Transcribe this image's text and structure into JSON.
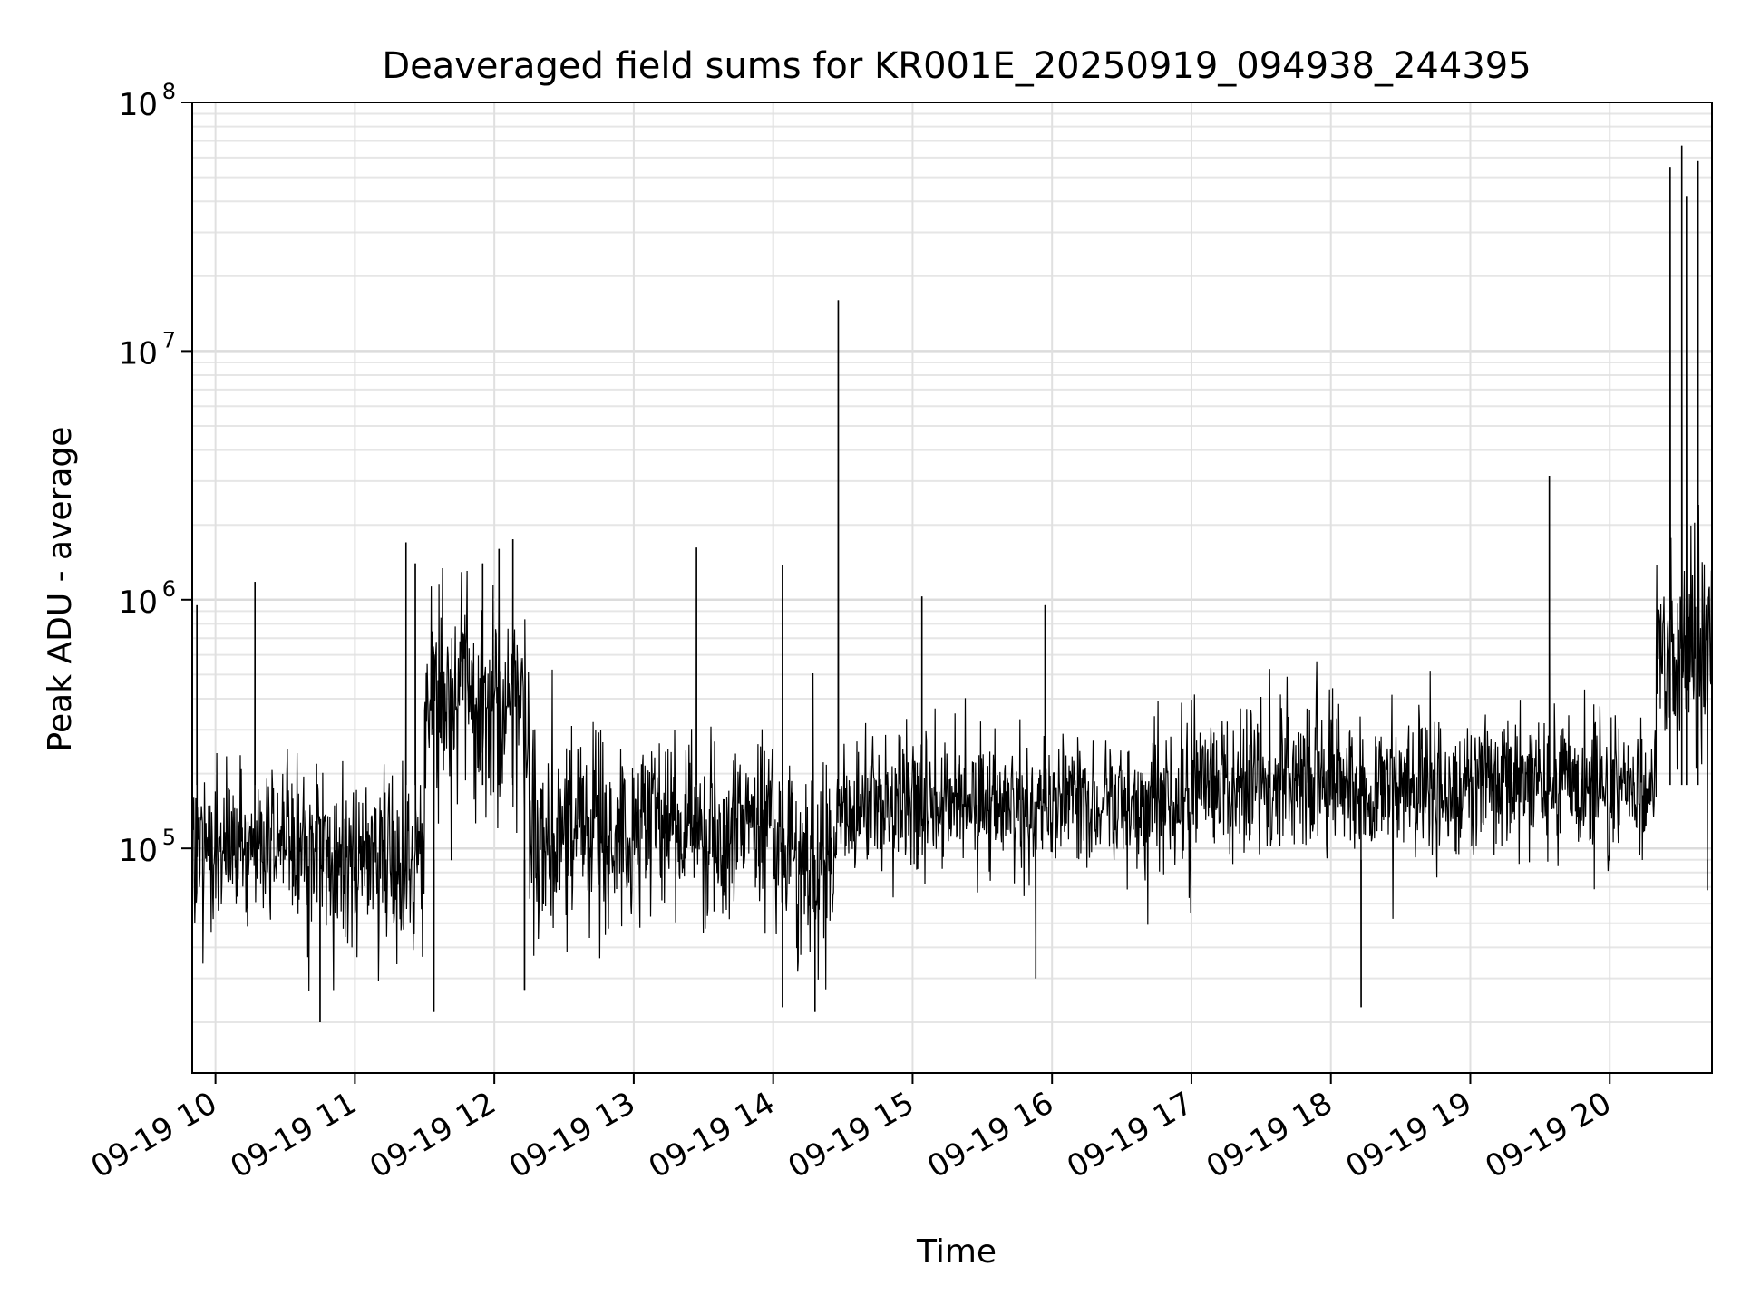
{
  "chart_data": {
    "type": "line",
    "title": "Deaveraged field sums for KR001E_20250919_094938_244395",
    "xlabel": "Time",
    "ylabel": "Peak ADU - average",
    "yscale": "log",
    "ylim": [
      12500,
      100000000
    ],
    "xlim": [
      "2025-09-19 09:50",
      "2025-09-19 20:44"
    ],
    "grid": true,
    "line_color": "#000000",
    "x_ticks": [
      "09-19 10",
      "09-19 11",
      "09-19 12",
      "09-19 13",
      "09-19 14",
      "09-19 15",
      "09-19 16",
      "09-19 17",
      "09-19 18",
      "09-19 19",
      "09-19 20"
    ],
    "y_ticks": [
      {
        "base": "10",
        "exp": "5",
        "value": 100000
      },
      {
        "base": "10",
        "exp": "6",
        "value": 1000000
      },
      {
        "base": "10",
        "exp": "7",
        "value": 10000000
      },
      {
        "base": "10",
        "exp": "8",
        "value": 100000000
      }
    ],
    "segments": [
      {
        "start": "09:50",
        "end": "10:40",
        "typical": 100000,
        "low": 50000,
        "high": 300000
      },
      {
        "start": "10:40",
        "end": "11:30",
        "typical": 90000,
        "low": 40000,
        "high": 300000
      },
      {
        "start": "11:30",
        "end": "12:15",
        "typical": 400000,
        "low": 100000,
        "high": 1200000
      },
      {
        "start": "12:15",
        "end": "13:00",
        "typical": 110000,
        "low": 50000,
        "high": 400000
      },
      {
        "start": "13:00",
        "end": "14:00",
        "typical": 120000,
        "low": 50000,
        "high": 400000
      },
      {
        "start": "14:00",
        "end": "14:27",
        "typical": 90000,
        "low": 40000,
        "high": 500000
      },
      {
        "start": "14:27",
        "end": "17:00",
        "typical": 150000,
        "low": 70000,
        "high": 350000
      },
      {
        "start": "17:00",
        "end": "20:20",
        "typical": 180000,
        "low": 80000,
        "high": 400000
      },
      {
        "start": "20:20",
        "end": "20:44",
        "typical": 600000,
        "low": 150000,
        "high": 2000000
      }
    ],
    "spikes": [
      {
        "time": "09:52",
        "value": 950000
      },
      {
        "time": "10:17",
        "value": 1180000
      },
      {
        "time": "10:45",
        "value": 20000
      },
      {
        "time": "11:22",
        "value": 1700000
      },
      {
        "time": "11:26",
        "value": 1400000
      },
      {
        "time": "11:34",
        "value": 22000
      },
      {
        "time": "11:55",
        "value": 1400000
      },
      {
        "time": "12:02",
        "value": 1600000
      },
      {
        "time": "12:08",
        "value": 1750000
      },
      {
        "time": "12:13",
        "value": 27000
      },
      {
        "time": "13:27",
        "value": 1620000
      },
      {
        "time": "14:04",
        "value": 1380000
      },
      {
        "time": "14:04",
        "value": 23000
      },
      {
        "time": "14:18",
        "value": 22000
      },
      {
        "time": "14:28",
        "value": 16000000
      },
      {
        "time": "15:04",
        "value": 1030000
      },
      {
        "time": "15:53",
        "value": 30000
      },
      {
        "time": "15:57",
        "value": 950000
      },
      {
        "time": "18:13",
        "value": 23000
      },
      {
        "time": "19:34",
        "value": 3150000
      },
      {
        "time": "20:26",
        "value": 55000000
      },
      {
        "time": "20:31",
        "value": 67000000
      },
      {
        "time": "20:33",
        "value": 42000000
      },
      {
        "time": "20:38",
        "value": 58000000
      },
      {
        "time": "20:42",
        "value": 68000
      }
    ]
  }
}
